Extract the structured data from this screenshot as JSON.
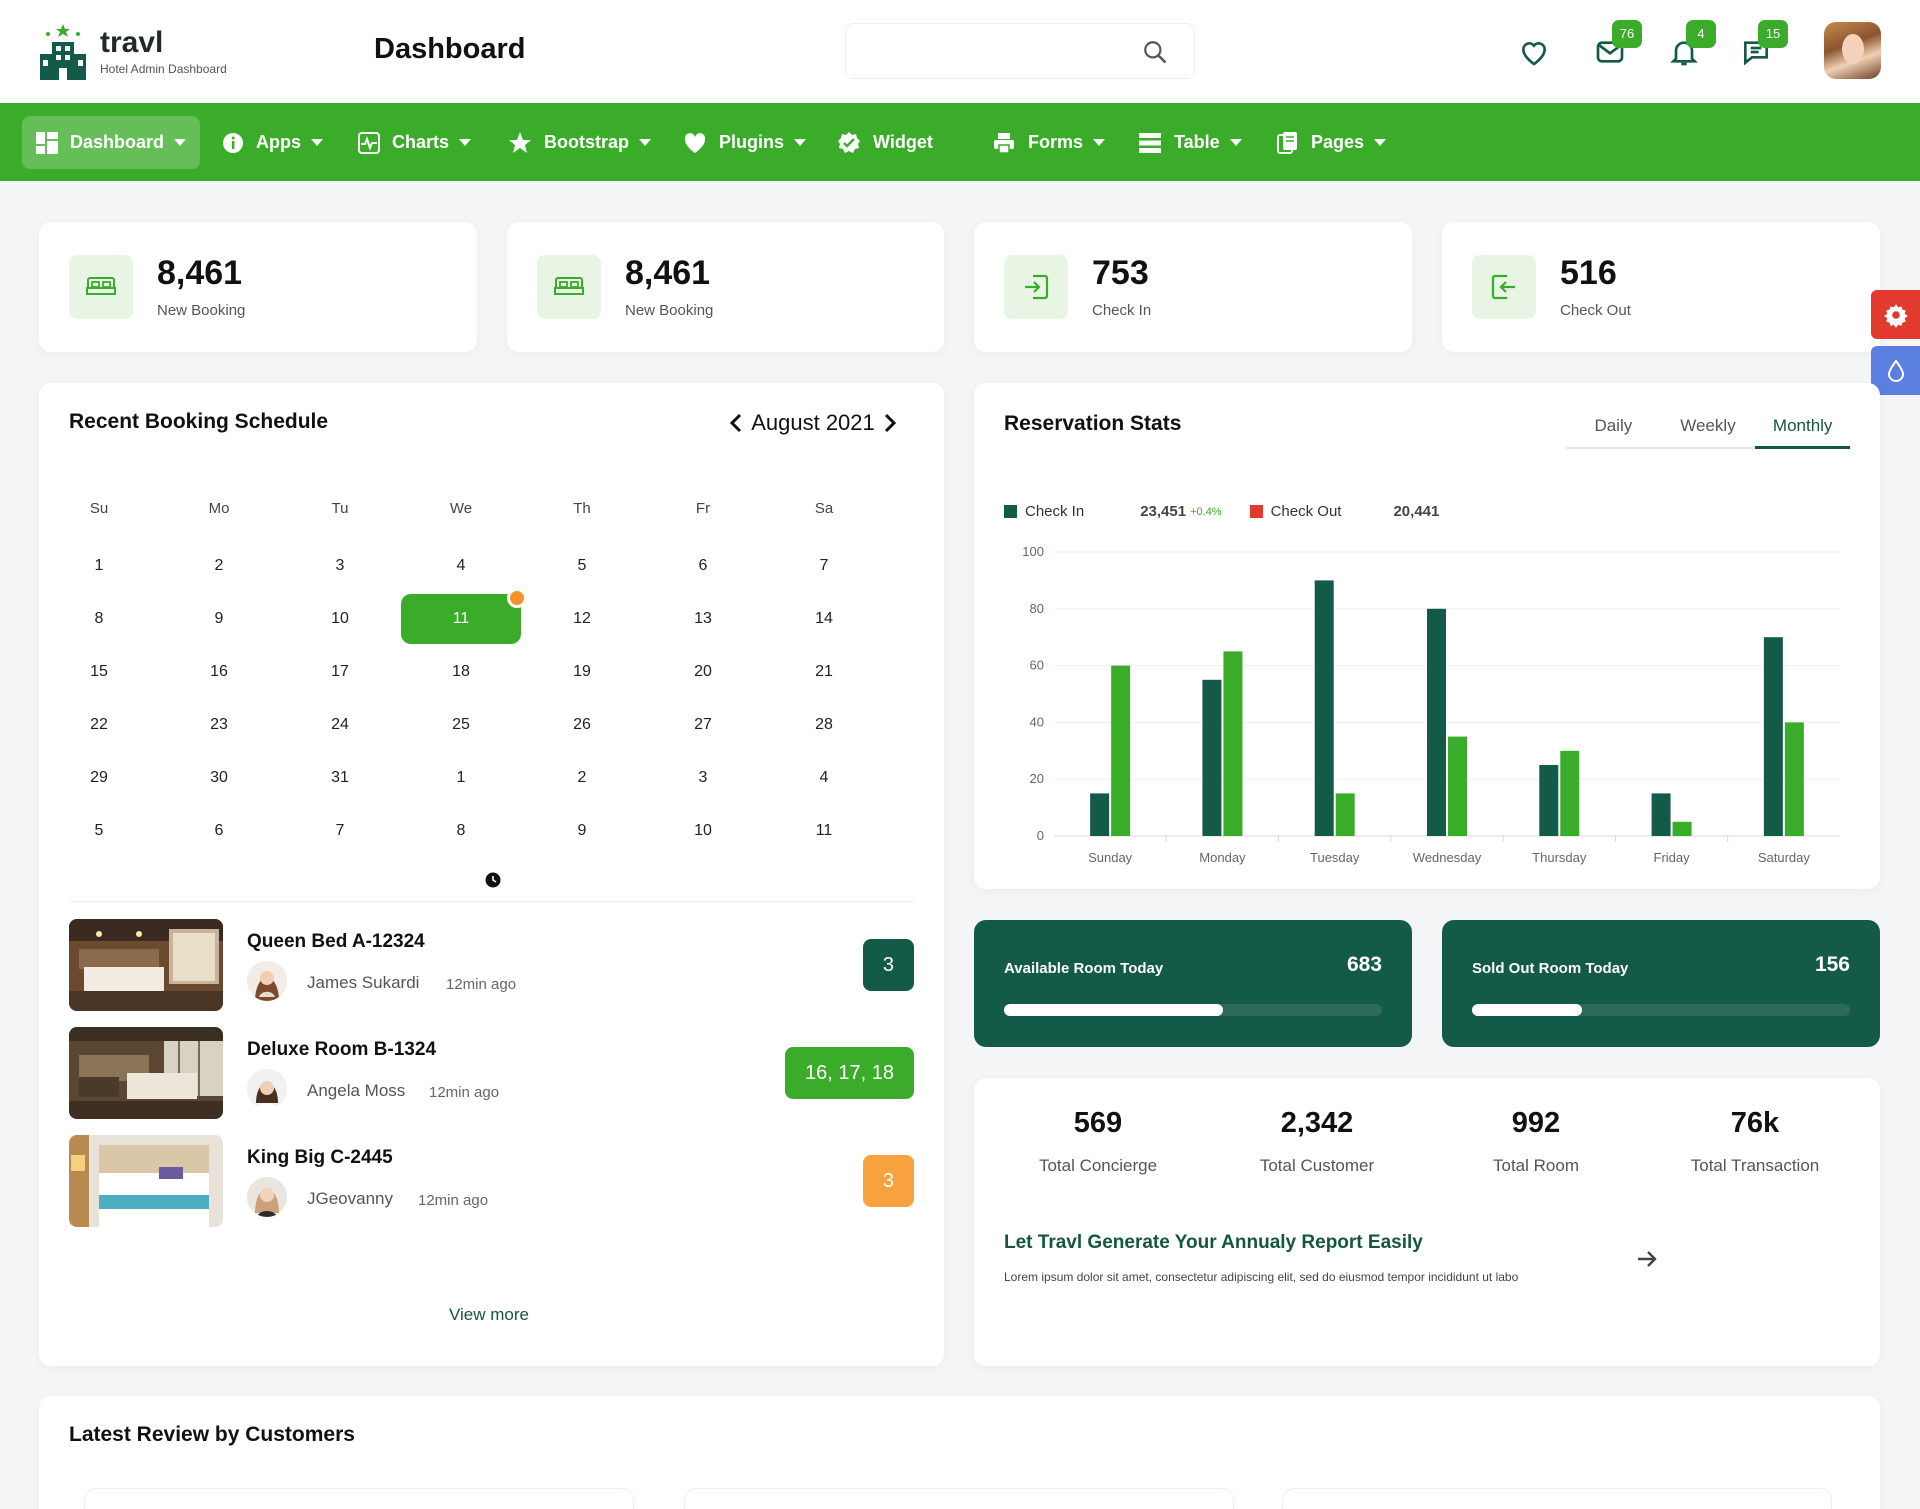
{
  "header": {
    "logo_name": "travl",
    "logo_sub": "Hotel Admin Dashboard",
    "page_title": "Dashboard",
    "search_placeholder": "",
    "icons": [
      {
        "name": "heart-icon",
        "badge": ""
      },
      {
        "name": "mail-icon",
        "badge": "76"
      },
      {
        "name": "bell-icon",
        "badge": "4"
      },
      {
        "name": "chat-icon",
        "badge": "15"
      }
    ]
  },
  "nav": {
    "items": [
      {
        "label": "Dashboard",
        "icon": "dashboard-icon",
        "caret": true,
        "active": true
      },
      {
        "label": "Apps",
        "icon": "info-icon",
        "caret": true
      },
      {
        "label": "Charts",
        "icon": "chart-icon",
        "caret": true
      },
      {
        "label": "Bootstrap",
        "icon": "star-icon",
        "caret": true
      },
      {
        "label": "Plugins",
        "icon": "heart-icon",
        "caret": true
      },
      {
        "label": "Widget",
        "icon": "badge-icon",
        "caret": false
      },
      {
        "label": "Forms",
        "icon": "printer-icon",
        "caret": true
      },
      {
        "label": "Table",
        "icon": "table-icon",
        "caret": true
      },
      {
        "label": "Pages",
        "icon": "pages-icon",
        "caret": true
      }
    ]
  },
  "stats": [
    {
      "value": "8,461",
      "label": "New Booking",
      "icon": "bed-icon"
    },
    {
      "value": "8,461",
      "label": "New Booking",
      "icon": "bed-icon"
    },
    {
      "value": "753",
      "label": "Check In",
      "icon": "check-in-icon"
    },
    {
      "value": "516",
      "label": "Check Out",
      "icon": "check-out-icon"
    }
  ],
  "calendar": {
    "title": "Recent Booking Schedule",
    "month": "August 2021",
    "weekdays": [
      "Su",
      "Mo",
      "Tu",
      "We",
      "Th",
      "Fr",
      "Sa"
    ],
    "weeks": [
      [
        "1",
        "2",
        "3",
        "4",
        "5",
        "6",
        "7"
      ],
      [
        "8",
        "9",
        "10",
        "11",
        "12",
        "13",
        "14"
      ],
      [
        "15",
        "16",
        "17",
        "18",
        "19",
        "20",
        "21"
      ],
      [
        "22",
        "23",
        "24",
        "25",
        "26",
        "27",
        "28"
      ],
      [
        "29",
        "30",
        "31",
        "1",
        "2",
        "3",
        "4"
      ],
      [
        "5",
        "6",
        "7",
        "8",
        "9",
        "10",
        "11"
      ]
    ],
    "selected_day": "11"
  },
  "bookings": [
    {
      "room": "Queen Bed A-12324",
      "name": "James Sukardi",
      "time": "12min ago",
      "badge": "3",
      "badge_color": "#145a48"
    },
    {
      "room": "Deluxe Room B-1324",
      "name": "Angela Moss",
      "time": "12min ago",
      "badge": "16, 17, 18",
      "badge_color": "#3aac2a"
    },
    {
      "room": "King Big C-2445",
      "name": "JGeovanny",
      "time": "12min ago",
      "badge": "3",
      "badge_color": "#f7a23e"
    }
  ],
  "view_more": "View more",
  "reservation": {
    "title": "Reservation Stats",
    "tabs": [
      "Daily",
      "Weekly",
      "Monthly"
    ],
    "active_tab": "Monthly",
    "legend": {
      "check_in_label": "Check In",
      "check_in_value": "23,451",
      "check_in_change": "+0.4%",
      "check_out_label": "Check Out",
      "check_out_value": "20,441"
    }
  },
  "chart_data": {
    "type": "bar",
    "categories": [
      "Sunday",
      "Monday",
      "Tuesday",
      "Wednesday",
      "Thursday",
      "Friday",
      "Saturday"
    ],
    "series": [
      {
        "name": "Check In",
        "color": "#145a48",
        "values": [
          15,
          55,
          90,
          80,
          25,
          15,
          70
        ]
      },
      {
        "name": "Check Out",
        "color": "#3aac2a",
        "values": [
          60,
          65,
          15,
          35,
          30,
          5,
          40
        ]
      }
    ],
    "ylim": [
      0,
      100
    ],
    "yticks": [
      0,
      20,
      40,
      60,
      80,
      100
    ],
    "grid": true
  },
  "rooms": [
    {
      "label": "Available Room Today",
      "value": "683",
      "fill": 0.58
    },
    {
      "label": "Sold Out Room Today",
      "value": "156",
      "fill": 0.29
    }
  ],
  "totals": [
    {
      "value": "569",
      "label": "Total Concierge"
    },
    {
      "value": "2,342",
      "label": "Total Customer"
    },
    {
      "value": "992",
      "label": "Total Room"
    },
    {
      "value": "76k",
      "label": "Total Transaction"
    }
  ],
  "report": {
    "title": "Let Travl Generate Your Annualy Report Easily",
    "text": "Lorem ipsum dolor sit amet, consectetur adipiscing elit, sed do eiusmod tempor incididunt ut labo"
  },
  "reviews": {
    "title": "Latest Review by Customers"
  },
  "colors": {
    "primary_green": "#3aac2a",
    "dark_green": "#145a48",
    "orange": "#f7a23e",
    "red": "#e23a2f",
    "blue": "#5b7fe0"
  }
}
